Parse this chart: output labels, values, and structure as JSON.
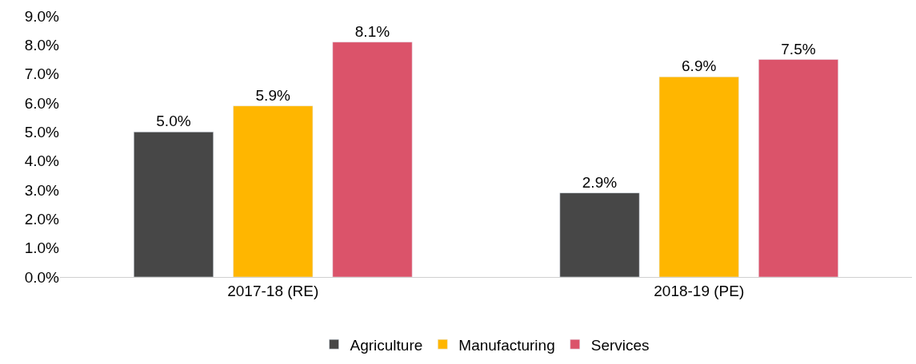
{
  "chart_data": {
    "type": "bar",
    "categories": [
      "2017-18 (RE)",
      "2018-19 (PE)"
    ],
    "series": [
      {
        "name": "Agriculture",
        "color": "#474747",
        "values": [
          5.0,
          2.9
        ],
        "value_labels": [
          "5.0%",
          "2.9%"
        ]
      },
      {
        "name": "Manufacturing",
        "color": "#ffb600",
        "values": [
          5.9,
          6.9
        ],
        "value_labels": [
          "5.9%",
          "6.9%"
        ]
      },
      {
        "name": "Services",
        "color": "#db536a",
        "values": [
          8.1,
          7.5
        ],
        "value_labels": [
          "8.1%",
          "7.5%"
        ]
      }
    ],
    "ylim": [
      0,
      9
    ],
    "yticks": [
      {
        "value": 0,
        "label": "0.0%"
      },
      {
        "value": 1,
        "label": "1.0%"
      },
      {
        "value": 2,
        "label": "2.0%"
      },
      {
        "value": 3,
        "label": "3.0%"
      },
      {
        "value": 4,
        "label": "4.0%"
      },
      {
        "value": 5,
        "label": "5.0%"
      },
      {
        "value": 6,
        "label": "6.0%"
      },
      {
        "value": 7,
        "label": "7.0%"
      },
      {
        "value": 8,
        "label": "8.0%"
      },
      {
        "value": 9,
        "label": "9.0%"
      }
    ],
    "legend": "bottom"
  }
}
